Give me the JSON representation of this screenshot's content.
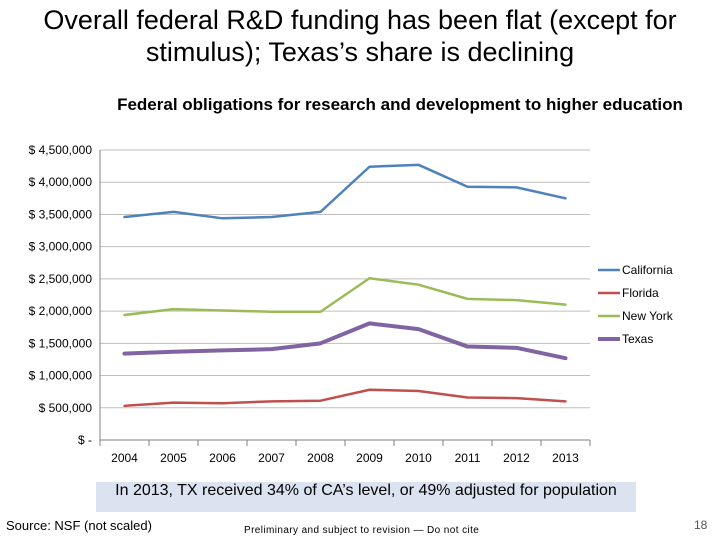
{
  "slide": {
    "title": "Overall federal R&D funding has been flat (except for stimulus); Texas’s share is declining",
    "callout": "In 2013, TX received 34% of CA’s level, or 49% adjusted for population",
    "source": "Source: NSF (not scaled)",
    "preliminary": "Preliminary and subject to revision — Do not cite",
    "page_number": "18"
  },
  "chart_data": {
    "type": "line",
    "title": "Federal obligations for research and development to higher education",
    "xlabel": "",
    "ylabel": "",
    "ylim": [
      0,
      4500000
    ],
    "grid": true,
    "legend_position": "right",
    "categories": [
      "2004",
      "2005",
      "2006",
      "2007",
      "2008",
      "2009",
      "2010",
      "2011",
      "2012",
      "2013"
    ],
    "y_ticks": [
      0,
      500000,
      1000000,
      1500000,
      2000000,
      2500000,
      3000000,
      3500000,
      4000000,
      4500000
    ],
    "y_tick_labels": [
      "$ -",
      "$ 500,000",
      "$ 1,000,000",
      "$ 1,500,000",
      "$ 2,000,000",
      "$ 2,500,000",
      "$ 3,000,000",
      "$ 3,500,000",
      "$ 4,000,000",
      "$ 4,500,000"
    ],
    "series": [
      {
        "name": "California",
        "color": "#4f81bd",
        "values": [
          3460000,
          3540000,
          3440000,
          3460000,
          3540000,
          4240000,
          4270000,
          3930000,
          3920000,
          3750000
        ]
      },
      {
        "name": "Florida",
        "color": "#c0504d",
        "values": [
          530000,
          580000,
          570000,
          600000,
          610000,
          780000,
          760000,
          660000,
          650000,
          600000
        ]
      },
      {
        "name": "New York",
        "color": "#9bbb59",
        "values": [
          1940000,
          2030000,
          2010000,
          1990000,
          1990000,
          2510000,
          2410000,
          2190000,
          2170000,
          2100000
        ]
      },
      {
        "name": "Texas",
        "color": "#8064a2",
        "values": [
          1340000,
          1370000,
          1390000,
          1410000,
          1500000,
          1810000,
          1720000,
          1450000,
          1430000,
          1270000
        ]
      }
    ]
  }
}
